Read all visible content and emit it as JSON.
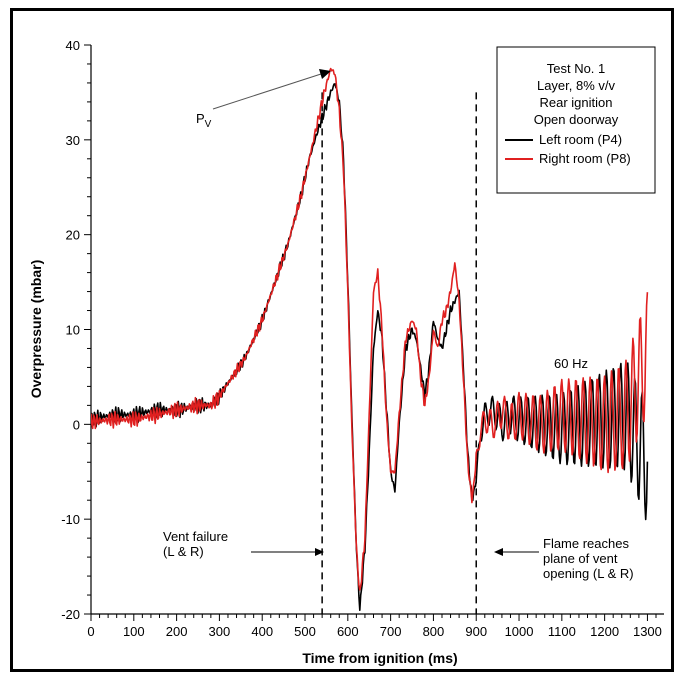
{
  "chart_data": {
    "type": "line",
    "xlabel": "Time from ignition (ms)",
    "ylabel": "Overpressure (mbar)",
    "xlim": [
      0,
      1320
    ],
    "ylim": [
      -20,
      40
    ],
    "xticks": [
      0,
      100,
      200,
      300,
      400,
      500,
      600,
      700,
      800,
      900,
      1000,
      1100,
      1200,
      1300
    ],
    "yticks": [
      -20,
      -10,
      0,
      10,
      20,
      30,
      40
    ],
    "grid": false,
    "legend": {
      "placement": "top-right",
      "title_lines": [
        "Test No. 1",
        "Layer, 8% v/v",
        "Rear ignition",
        "Open doorway"
      ]
    },
    "series": [
      {
        "name": "Left room (P4)",
        "color": "#000000",
        "x": [
          0,
          50,
          100,
          150,
          200,
          250,
          280,
          300,
          330,
          360,
          400,
          430,
          460,
          490,
          510,
          530,
          545,
          560,
          570,
          580,
          590,
          600,
          610,
          620,
          628,
          640,
          650,
          660,
          670,
          680,
          690,
          700,
          710,
          720,
          735,
          750,
          760,
          770,
          780,
          790,
          800,
          810,
          820,
          830,
          840,
          850,
          860,
          870,
          880,
          890,
          900,
          910,
          920,
          940,
          960,
          980,
          1000,
          1050,
          1100,
          1150,
          1200,
          1250,
          1300
        ],
        "y": [
          0.5,
          1,
          1,
          1.5,
          1.5,
          2,
          2,
          3,
          5,
          7,
          11,
          15,
          19,
          24,
          28,
          31,
          33,
          35,
          36,
          34,
          28,
          15,
          0,
          -13,
          -19.5,
          -13,
          -3,
          8,
          12,
          9,
          2,
          -5,
          -7,
          0,
          8,
          10,
          9,
          6,
          3,
          6,
          11,
          9,
          8,
          10,
          12,
          13,
          14,
          6,
          -3,
          -8,
          -6,
          -1,
          1,
          1.5,
          0,
          1,
          0.5,
          0,
          -0.5,
          0,
          0.5,
          1,
          -4
        ]
      },
      {
        "name": "Right room (P8)",
        "color": "#e02020",
        "x": [
          0,
          50,
          100,
          150,
          200,
          250,
          280,
          300,
          330,
          360,
          400,
          430,
          460,
          490,
          510,
          530,
          545,
          560,
          570,
          580,
          590,
          600,
          610,
          620,
          628,
          640,
          650,
          660,
          670,
          680,
          690,
          700,
          710,
          720,
          735,
          750,
          760,
          770,
          780,
          790,
          800,
          810,
          820,
          830,
          840,
          850,
          860,
          870,
          880,
          890,
          900,
          910,
          920,
          940,
          960,
          980,
          1000,
          1050,
          1100,
          1150,
          1200,
          1250,
          1300
        ],
        "y": [
          0.3,
          0.5,
          0.5,
          1,
          1.5,
          2,
          2,
          3,
          5,
          7,
          11,
          15,
          19,
          24,
          28,
          32,
          35,
          37.5,
          37,
          33,
          27,
          14,
          -1,
          -13,
          -18,
          -12,
          1,
          14,
          16,
          10,
          1,
          -5,
          -5,
          1,
          9,
          11,
          10,
          5,
          2,
          5,
          10,
          8,
          11,
          12,
          14,
          17,
          13,
          5,
          -4,
          -8,
          -4,
          -0.5,
          0.5,
          0,
          1.5,
          0,
          1,
          0,
          1,
          0.5,
          0,
          1,
          7.5
        ]
      }
    ],
    "annotations": {
      "pv_label": "P",
      "pv_sub": "V",
      "vent_failure": [
        "Vent failure",
        "(L & R)"
      ],
      "flame": [
        "Flame reaches",
        "plane of vent",
        "opening (L & R)"
      ],
      "hz": "60 Hz"
    },
    "vlines": [
      540,
      900
    ]
  }
}
